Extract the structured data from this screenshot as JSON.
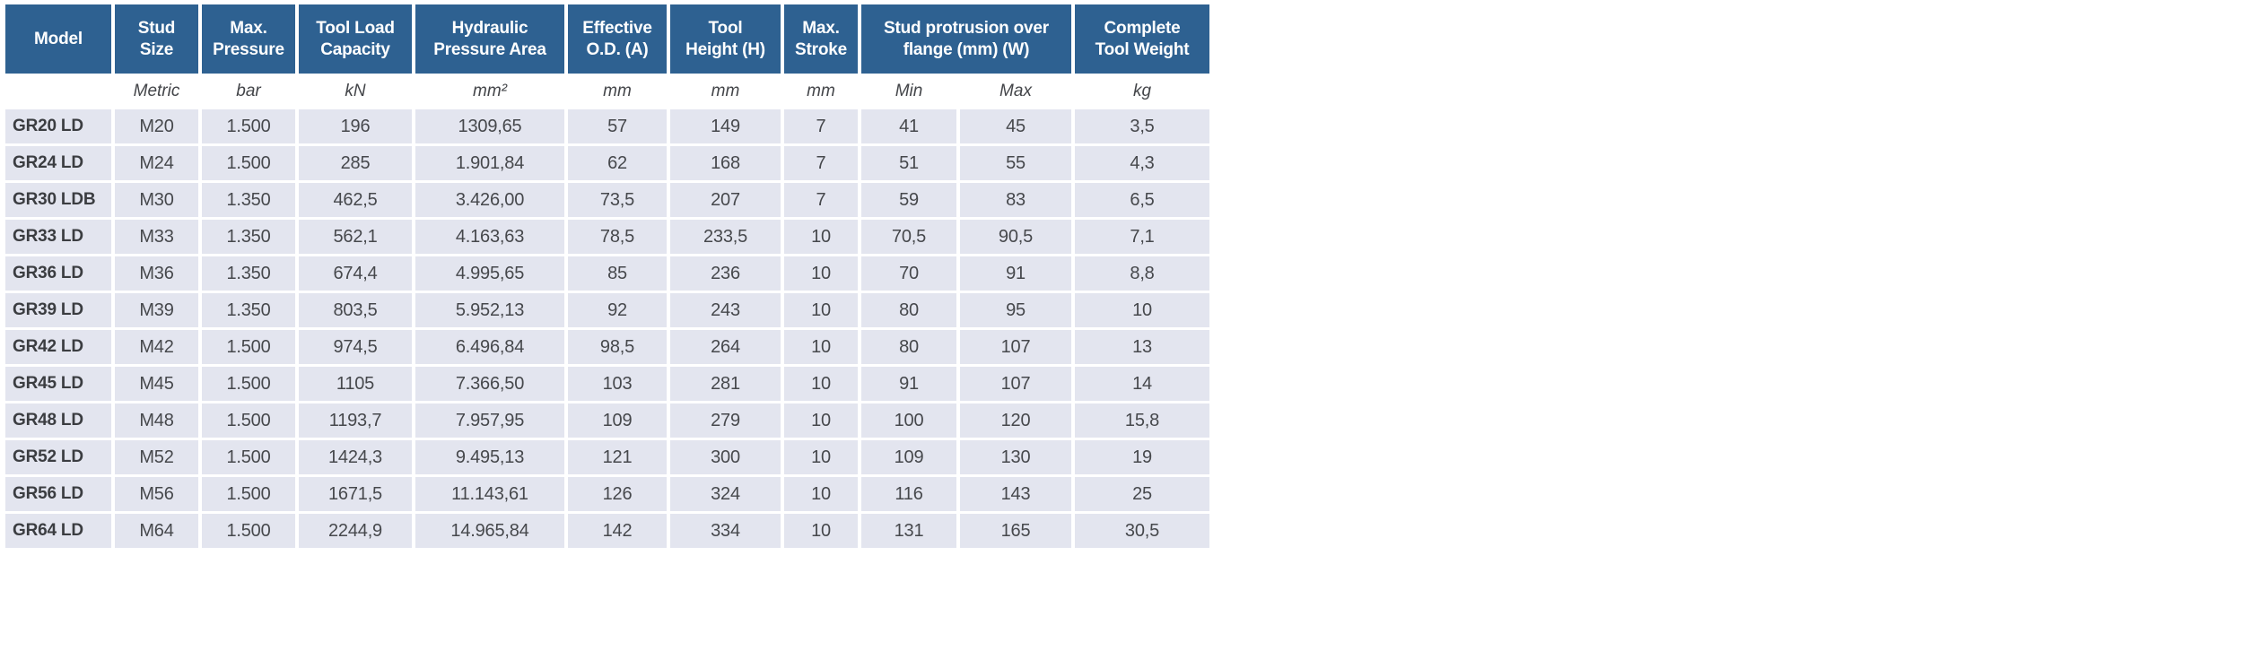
{
  "colors": {
    "header_bg": "#2e6191",
    "header_text": "#ffffff",
    "row_bg": "#e3e5ef",
    "data_text": "#46484c",
    "model_text": "#3b3d41"
  },
  "table": {
    "header": [
      "Model",
      "Stud\nSize",
      "Max.\nPressure",
      "Tool Load\nCapacity",
      "Hydraulic\nPressure Area",
      "Effective\nO.D. (A)",
      "Tool\nHeight (H)",
      "Max.\nStroke",
      "Stud protrusion over\nflange (mm) (W)",
      "Complete\nTool Weight"
    ],
    "units": [
      "",
      "Metric",
      "bar",
      "kN",
      "mm²",
      "mm",
      "mm",
      "mm",
      "Min",
      "Max",
      "kg"
    ],
    "rows": [
      [
        "GR20 LD",
        "M20",
        "1.500",
        "196",
        "1309,65",
        "57",
        "149",
        "7",
        "41",
        "45",
        "3,5"
      ],
      [
        "GR24 LD",
        "M24",
        "1.500",
        "285",
        "1.901,84",
        "62",
        "168",
        "7",
        "51",
        "55",
        "4,3"
      ],
      [
        "GR30 LDB",
        "M30",
        "1.350",
        "462,5",
        "3.426,00",
        "73,5",
        "207",
        "7",
        "59",
        "83",
        "6,5"
      ],
      [
        "GR33 LD",
        "M33",
        "1.350",
        "562,1",
        "4.163,63",
        "78,5",
        "233,5",
        "10",
        "70,5",
        "90,5",
        "7,1"
      ],
      [
        "GR36 LD",
        "M36",
        "1.350",
        "674,4",
        "4.995,65",
        "85",
        "236",
        "10",
        "70",
        "91",
        "8,8"
      ],
      [
        "GR39 LD",
        "M39",
        "1.350",
        "803,5",
        "5.952,13",
        "92",
        "243",
        "10",
        "80",
        "95",
        "10"
      ],
      [
        "GR42 LD",
        "M42",
        "1.500",
        "974,5",
        "6.496,84",
        "98,5",
        "264",
        "10",
        "80",
        "107",
        "13"
      ],
      [
        "GR45 LD",
        "M45",
        "1.500",
        "1105",
        "7.366,50",
        "103",
        "281",
        "10",
        "91",
        "107",
        "14"
      ],
      [
        "GR48 LD",
        "M48",
        "1.500",
        "1193,7",
        "7.957,95",
        "109",
        "279",
        "10",
        "100",
        "120",
        "15,8"
      ],
      [
        "GR52 LD",
        "M52",
        "1.500",
        "1424,3",
        "9.495,13",
        "121",
        "300",
        "10",
        "109",
        "130",
        "19"
      ],
      [
        "GR56 LD",
        "M56",
        "1.500",
        "1671,5",
        "11.143,61",
        "126",
        "324",
        "10",
        "116",
        "143",
        "25"
      ],
      [
        "GR64 LD",
        "M64",
        "1.500",
        "2244,9",
        "14.965,84",
        "142",
        "334",
        "10",
        "131",
        "165",
        "30,5"
      ]
    ]
  }
}
